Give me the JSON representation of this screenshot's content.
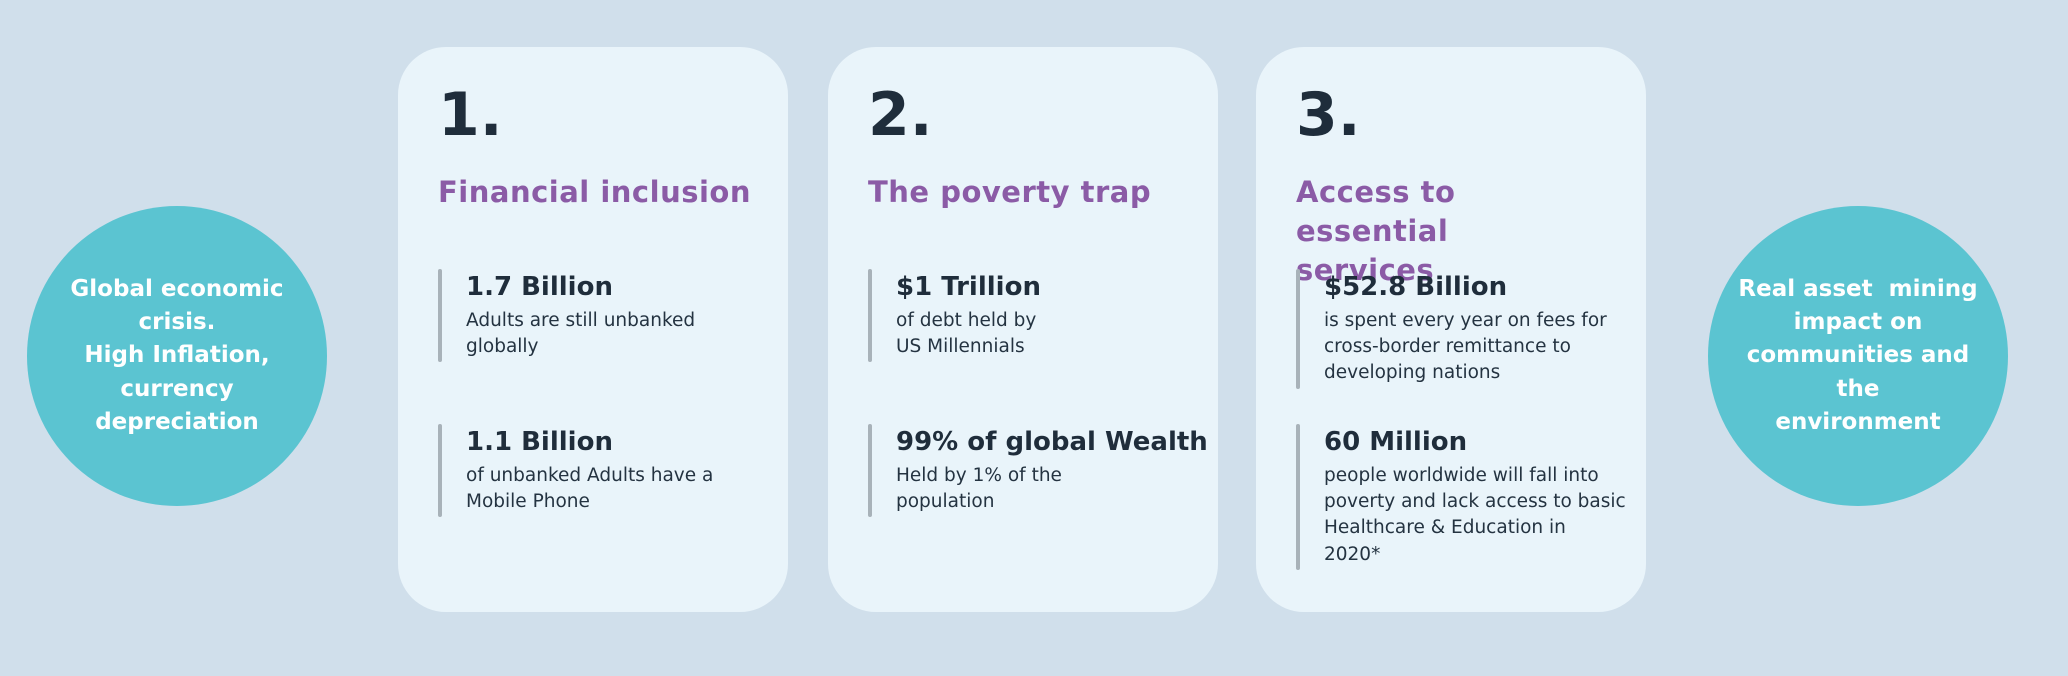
{
  "colors": {
    "page_background": "#d0dfeb",
    "card_background": "#e9f4fa",
    "circle_fill": "#5bc4d1",
    "circle_text": "#ffffff",
    "title_purple": "#8b5ba6",
    "dark_text": "#1f2d3b",
    "stat_bar_gray": "#a8b2b9"
  },
  "left_circle": {
    "text": "Global economic\ncrisis.\nHigh Inflation,\ncurrency\ndepreciation"
  },
  "right_circle": {
    "text": "Real asset  mining\nimpact on\ncommunities and the\nenvironment"
  },
  "cards": [
    {
      "number": "1.",
      "title": "Financial inclusion",
      "stats": [
        {
          "value": "1.7 Billion",
          "description": "Adults are still unbanked\nglobally"
        },
        {
          "value": "1.1 Billion",
          "description": "of unbanked Adults have a\nMobile Phone"
        }
      ]
    },
    {
      "number": "2.",
      "title": "The poverty trap",
      "stats": [
        {
          "value": "$1 Trillion",
          "description": "of debt held by\nUS Millennials"
        },
        {
          "value": "99% of global Wealth",
          "description": "Held by 1% of the\npopulation"
        }
      ]
    },
    {
      "number": "3.",
      "title": "Access to essential\nservices",
      "stats": [
        {
          "value": "$52.8 Billion",
          "description": "is spent every year on fees for\ncross-border remittance to\ndeveloping nations"
        },
        {
          "value": "60 Million",
          "description": "people worldwide will fall into\npoverty and lack access to basic\nHealthcare & Education in 2020*"
        }
      ]
    }
  ]
}
